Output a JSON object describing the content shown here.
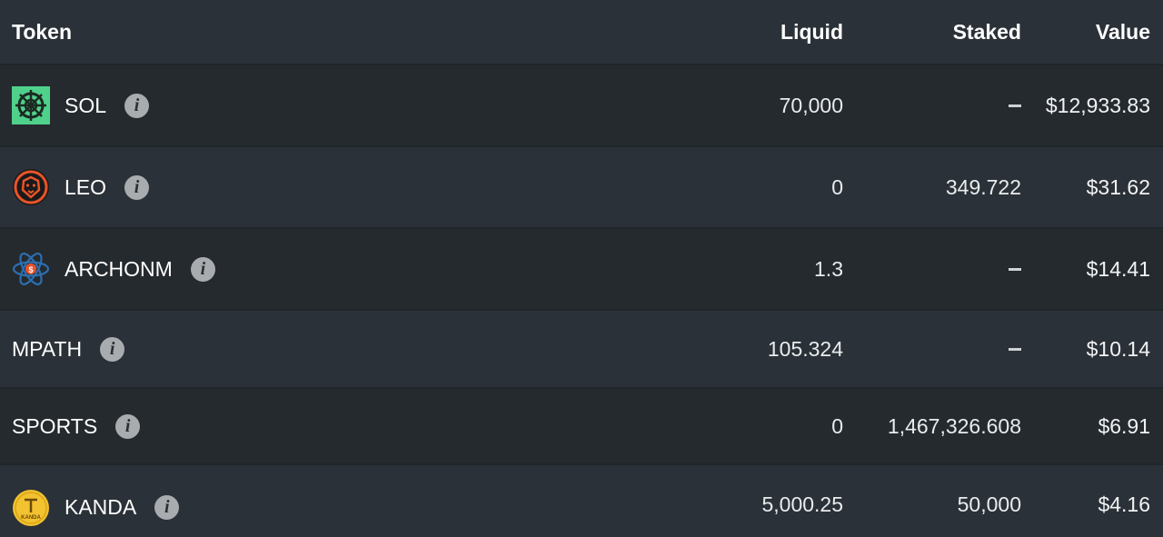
{
  "header": {
    "token": "Token",
    "liquid": "Liquid",
    "staked": "Staked",
    "value": "Value"
  },
  "rows": [
    {
      "name": "SOL",
      "liquid": "70,000",
      "staked": "–",
      "value": "$12,933.83",
      "icon": "sol-token-icon"
    },
    {
      "name": "LEO",
      "liquid": "0",
      "staked": "349.722",
      "value": "$31.62",
      "icon": "leo-token-icon"
    },
    {
      "name": "ARCHONM",
      "liquid": "1.3",
      "staked": "–",
      "value": "$14.41",
      "icon": "archonm-token-icon"
    },
    {
      "name": "MPATH",
      "liquid": "105.324",
      "staked": "–",
      "value": "$10.14",
      "icon": ""
    },
    {
      "name": "SPORTS",
      "liquid": "0",
      "staked": "1,467,326.608",
      "value": "$6.91",
      "icon": ""
    },
    {
      "name": "KANDA",
      "liquid": "5,000.25",
      "staked": "50,000",
      "value": "$4.16",
      "icon": "kanda-token-icon"
    }
  ],
  "icons": {
    "info": "info-icon",
    "kanda_label": "KANDA"
  },
  "colors": {
    "background": "#2a2f35",
    "row_alt": "#252a2f",
    "sol_green": "#4fd18b",
    "leo_orange": "#e8542a",
    "archon_blue": "#2c6fb0",
    "kanda_gold": "#f2c230"
  }
}
